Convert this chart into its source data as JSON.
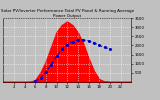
{
  "title": "Solar PV/Inverter Performance Total PV Panel & Running Average Power Output",
  "background_color": "#c0c0c0",
  "plot_bg_color": "#c0c0c0",
  "grid_color": "white",
  "x_hours": [
    0,
    1,
    2,
    3,
    4,
    5,
    6,
    7,
    8,
    9,
    10,
    11,
    12,
    13,
    14,
    15,
    16,
    17,
    18,
    19,
    20,
    21,
    22,
    23,
    24
  ],
  "pv_power": [
    0,
    0,
    0,
    0,
    0,
    5,
    80,
    500,
    1100,
    1900,
    2700,
    3100,
    3300,
    3100,
    2700,
    2100,
    1300,
    600,
    150,
    20,
    0,
    0,
    0,
    0,
    0
  ],
  "running_avg": [
    0,
    0,
    0,
    0,
    0,
    0,
    30,
    200,
    550,
    950,
    1400,
    1800,
    2050,
    2200,
    2300,
    2300,
    2250,
    2150,
    2000,
    1900,
    1800,
    0,
    0,
    0,
    0
  ],
  "pv_color": "#ff0000",
  "avg_color": "#0000cc",
  "avg_style": "--",
  "ylim": [
    0,
    3500
  ],
  "xlim": [
    0,
    24
  ],
  "title_fontsize": 3.0,
  "tick_fontsize": 2.8,
  "linewidth_avg": 0.8,
  "marker_avg": "o",
  "marker_size": 1.2,
  "yticks": [
    500,
    1000,
    1500,
    2000,
    2500,
    3000,
    3500
  ],
  "xticks": [
    2,
    4,
    6,
    8,
    10,
    12,
    14,
    16,
    18,
    20,
    22
  ]
}
